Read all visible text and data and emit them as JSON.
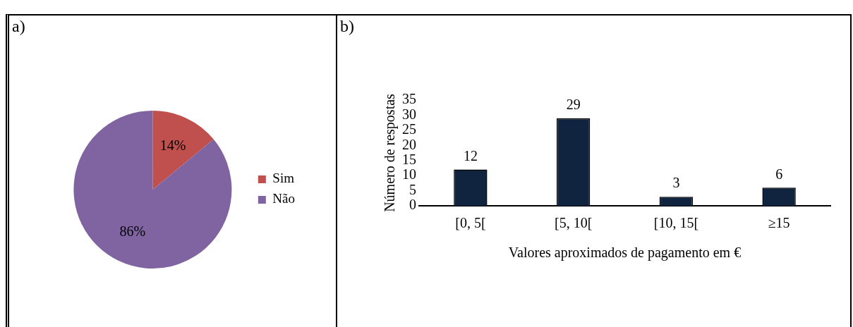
{
  "chart_data": [
    {
      "type": "pie",
      "title": "a)",
      "categories": [
        "Sim",
        "Não"
      ],
      "values": [
        14,
        86
      ],
      "colors": [
        "#c0504d",
        "#8064a2"
      ],
      "value_labels": [
        "14%",
        "86%"
      ],
      "legend": "right"
    },
    {
      "type": "bar",
      "title": "b)",
      "categories": [
        "[0, 5[",
        "[5, 10[",
        "[10, 15[",
        "≥15"
      ],
      "values": [
        12,
        29,
        3,
        6
      ],
      "color": "#10243f",
      "ylim": [
        0,
        35
      ],
      "yticks": [
        0,
        5,
        10,
        15,
        20,
        25,
        30,
        35
      ],
      "xlabel": "Valores aproximados de pagamento em €",
      "ylabel": "Número de respostas",
      "data_labels": true,
      "grid": false,
      "legend": false
    }
  ]
}
